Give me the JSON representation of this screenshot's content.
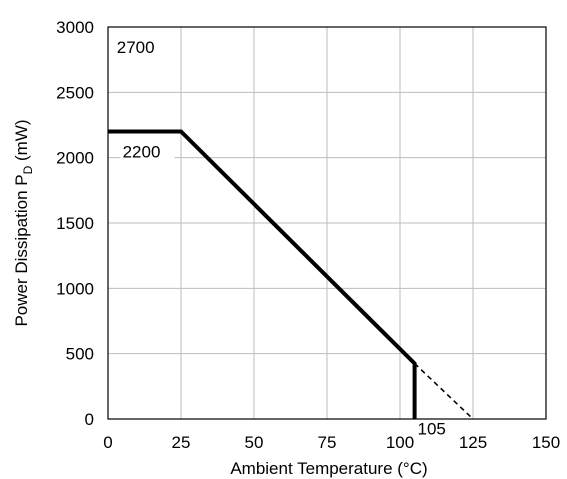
{
  "chart_data": {
    "type": "line",
    "title": "",
    "xlabel": "Ambient Temperature (°C)",
    "ylabel_main": "Power Dissipation P",
    "ylabel_sub": "D",
    "ylabel_unit": " (mW)",
    "xlim": [
      0,
      150
    ],
    "ylim": [
      0,
      3000
    ],
    "xticks": [
      0,
      25,
      50,
      75,
      100,
      125,
      150
    ],
    "yticks": [
      0,
      500,
      1000,
      1500,
      2000,
      2500,
      3000
    ],
    "grid": true,
    "legend": "none",
    "series": [
      {
        "style": "solid",
        "color": "#000000",
        "x": [
          0,
          25,
          105,
          105
        ],
        "y": [
          2200,
          2200,
          425,
          0
        ]
      },
      {
        "style": "dashed",
        "color": "#000000",
        "x": [
          105,
          125
        ],
        "y": [
          425,
          0
        ]
      }
    ],
    "annotations": [
      {
        "text": "2700",
        "x": 3,
        "y": 2800
      },
      {
        "text": "2200",
        "x": 5,
        "y": 2000
      },
      {
        "text": "105",
        "x": 106,
        "y": -120
      }
    ]
  }
}
